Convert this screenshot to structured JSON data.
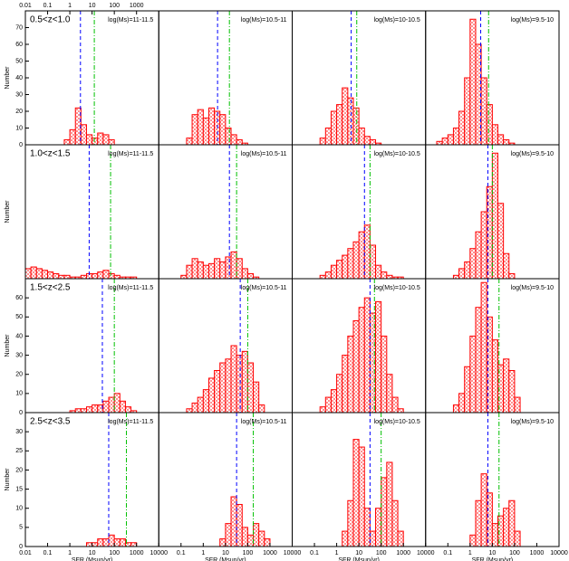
{
  "chart_data": [
    {
      "type": "histogram",
      "title": "0.5<z<1.0",
      "annotation": "log(Ms)=11-11.5",
      "ylabel": "Number",
      "log_x": true,
      "xlim": [
        0.01,
        10000
      ],
      "top_xticks": [
        0.01,
        0.1,
        1,
        10,
        100,
        1000
      ],
      "ylim": [
        0,
        80
      ],
      "yticks": [
        0,
        10,
        20,
        30,
        40,
        50,
        60,
        70
      ],
      "bins": [
        0.562,
        1,
        1.78,
        3.16,
        5.62,
        10,
        17.8,
        31.6,
        56.2,
        100
      ],
      "values": [
        3,
        9,
        22,
        12,
        6,
        4,
        7,
        6,
        3
      ],
      "color": "#ff0000",
      "lines": [
        {
          "x": 3,
          "color": "#0000ff",
          "style": "dashed"
        },
        {
          "x": 12.6,
          "color": "#00c000",
          "style": "dashdot"
        }
      ]
    },
    {
      "type": "histogram",
      "annotation": "log(Ms)=10.5-11",
      "log_x": true,
      "xlim": [
        0.01,
        10000
      ],
      "ylim": [
        0,
        80
      ],
      "bins": [
        0.178,
        0.316,
        0.562,
        1,
        1.78,
        3.16,
        5.62,
        10,
        17.8,
        31.6,
        56.2,
        100
      ],
      "values": [
        4,
        18,
        21,
        16,
        22,
        20,
        18,
        10,
        6,
        3,
        1
      ],
      "color": "#ff0000",
      "lines": [
        {
          "x": 4.4,
          "color": "#0000ff",
          "style": "dashed"
        },
        {
          "x": 15,
          "color": "#00c000",
          "style": "dashdot"
        }
      ]
    },
    {
      "type": "histogram",
      "annotation": "log(Ms)=10-10.5",
      "log_x": true,
      "xlim": [
        0.01,
        10000
      ],
      "ylim": [
        0,
        80
      ],
      "bins": [
        0.178,
        0.316,
        0.562,
        1,
        1.78,
        3.16,
        5.62,
        10,
        17.8,
        31.6,
        56.2,
        100
      ],
      "values": [
        4,
        10,
        20,
        24,
        34,
        28,
        22,
        10,
        5,
        3,
        1
      ],
      "color": "#ff0000",
      "lines": [
        {
          "x": 4.5,
          "color": "#0000ff",
          "style": "dashed"
        },
        {
          "x": 8,
          "color": "#00c000",
          "style": "dashdot"
        }
      ]
    },
    {
      "type": "histogram",
      "annotation": "log(Ms)=9.5-10",
      "log_x": true,
      "xlim": [
        0.01,
        10000
      ],
      "ylim": [
        0,
        80
      ],
      "bins": [
        0.0316,
        0.0562,
        0.1,
        0.178,
        0.316,
        0.562,
        1,
        1.78,
        3.16,
        5.62,
        10,
        17.8,
        31.6,
        56.2,
        100
      ],
      "values": [
        2,
        4,
        6,
        10,
        20,
        40,
        75,
        60,
        40,
        24,
        12,
        6,
        3,
        1
      ],
      "color": "#ff0000",
      "lines": [
        {
          "x": 3,
          "color": "#0000ff",
          "style": "dashed"
        },
        {
          "x": 6.8,
          "color": "#00c000",
          "style": "dashdot"
        }
      ]
    },
    {
      "type": "histogram",
      "title": "1.0<z<1.5",
      "annotation": "log(Ms)=11-11.5",
      "ylabel": "Number",
      "log_x": true,
      "xlim": [
        0.01,
        10000
      ],
      "ylim": [
        0,
        80
      ],
      "bins": [
        0.01,
        0.0178,
        0.0316,
        0.0562,
        0.1,
        0.178,
        0.316,
        0.562,
        1,
        1.78,
        3.16,
        5.62,
        10,
        17.8,
        31.6,
        56.2,
        100,
        178,
        316,
        562,
        1000
      ],
      "values": [
        6,
        7,
        6,
        5,
        4,
        3,
        2,
        2,
        1,
        1,
        2,
        3,
        3,
        4,
        5,
        3,
        2,
        1,
        1,
        1
      ],
      "color": "#ff0000",
      "lines": [
        {
          "x": 7.4,
          "color": "#0000ff",
          "style": "dashed"
        },
        {
          "x": 68,
          "color": "#00c000",
          "style": "dashdot"
        }
      ]
    },
    {
      "type": "histogram",
      "annotation": "log(Ms)=10.5-11",
      "log_x": true,
      "xlim": [
        0.01,
        10000
      ],
      "ylim": [
        0,
        80
      ],
      "bins": [
        0.1,
        0.178,
        0.316,
        0.562,
        1,
        1.78,
        3.16,
        5.62,
        10,
        17.8,
        31.6,
        56.2,
        100,
        178,
        316
      ],
      "values": [
        2,
        8,
        12,
        10,
        8,
        9,
        12,
        10,
        13,
        16,
        12,
        6,
        3,
        1
      ],
      "color": "#ff0000",
      "lines": [
        {
          "x": 15,
          "color": "#0000ff",
          "style": "dashed"
        },
        {
          "x": 31.6,
          "color": "#00c000",
          "style": "dashdot"
        }
      ]
    },
    {
      "type": "histogram",
      "annotation": "log(Ms)=10-10.5",
      "log_x": true,
      "xlim": [
        0.01,
        10000
      ],
      "ylim": [
        0,
        80
      ],
      "bins": [
        0.178,
        0.316,
        0.562,
        1,
        1.78,
        3.16,
        5.62,
        10,
        17.8,
        31.6,
        56.2,
        100,
        178,
        316,
        562,
        1000
      ],
      "values": [
        2,
        4,
        8,
        11,
        14,
        18,
        22,
        28,
        32,
        20,
        8,
        4,
        2,
        1,
        1
      ],
      "color": "#ff0000",
      "lines": [
        {
          "x": 17.8,
          "color": "#0000ff",
          "style": "dashed"
        },
        {
          "x": 31.6,
          "color": "#00c000",
          "style": "dashdot"
        }
      ]
    },
    {
      "type": "histogram",
      "annotation": "log(Ms)=9.5-10",
      "log_x": true,
      "xlim": [
        0.01,
        10000
      ],
      "ylim": [
        0,
        80
      ],
      "bins": [
        0.178,
        0.316,
        0.562,
        1,
        1.78,
        3.16,
        5.62,
        10,
        17.8,
        31.6,
        56.2,
        100
      ],
      "values": [
        2,
        6,
        10,
        18,
        28,
        40,
        55,
        75,
        45,
        15,
        3
      ],
      "color": "#ff0000",
      "lines": [
        {
          "x": 6.3,
          "color": "#0000ff",
          "style": "dashed"
        },
        {
          "x": 10,
          "color": "#00c000",
          "style": "dashdot"
        }
      ]
    },
    {
      "type": "histogram",
      "title": "1.5<z<2.5",
      "annotation": "log(Ms)=11-11.5",
      "ylabel": "Number",
      "log_x": true,
      "xlim": [
        0.01,
        10000
      ],
      "ylim": [
        0,
        70
      ],
      "yticks": [
        0,
        10,
        20,
        30,
        40,
        50,
        60
      ],
      "bins": [
        1,
        1.78,
        3.16,
        5.62,
        10,
        17.8,
        31.6,
        56.2,
        100,
        178,
        316,
        562,
        1000
      ],
      "values": [
        1,
        2,
        2,
        3,
        4,
        4,
        6,
        8,
        10,
        6,
        3,
        1
      ],
      "color": "#ff0000",
      "lines": [
        {
          "x": 29,
          "color": "#0000ff",
          "style": "dashed"
        },
        {
          "x": 100,
          "color": "#00c000",
          "style": "dashdot"
        }
      ]
    },
    {
      "type": "histogram",
      "annotation": "log(Ms)=10.5-11",
      "log_x": true,
      "xlim": [
        0.01,
        10000
      ],
      "ylim": [
        0,
        70
      ],
      "bins": [
        0.178,
        0.316,
        0.562,
        1,
        1.78,
        3.16,
        5.62,
        10,
        17.8,
        31.6,
        56.2,
        100,
        178,
        316,
        562
      ],
      "values": [
        2,
        5,
        8,
        12,
        18,
        22,
        26,
        28,
        35,
        30,
        32,
        26,
        16,
        4
      ],
      "color": "#ff0000",
      "lines": [
        {
          "x": 46,
          "color": "#0000ff",
          "style": "dashed"
        },
        {
          "x": 100,
          "color": "#00c000",
          "style": "dashdot"
        }
      ]
    },
    {
      "type": "histogram",
      "annotation": "log(Ms)=10-10.5",
      "log_x": true,
      "xlim": [
        0.01,
        10000
      ],
      "ylim": [
        0,
        70
      ],
      "bins": [
        0.178,
        0.316,
        0.562,
        1,
        1.78,
        3.16,
        5.62,
        10,
        17.8,
        31.6,
        56.2,
        100,
        178,
        316,
        562,
        1000
      ],
      "values": [
        3,
        8,
        12,
        20,
        30,
        40,
        48,
        55,
        60,
        52,
        58,
        40,
        20,
        8,
        2
      ],
      "color": "#ff0000",
      "lines": [
        {
          "x": 31.6,
          "color": "#0000ff",
          "style": "dashed"
        },
        {
          "x": 50,
          "color": "#00c000",
          "style": "dashdot"
        }
      ]
    },
    {
      "type": "histogram",
      "annotation": "log(Ms)=9.5-10",
      "log_x": true,
      "xlim": [
        0.01,
        10000
      ],
      "ylim": [
        0,
        70
      ],
      "bins": [
        0.178,
        0.316,
        0.562,
        1,
        1.78,
        3.16,
        5.62,
        10,
        17.8,
        31.6,
        56.2,
        100,
        178
      ],
      "values": [
        4,
        10,
        24,
        40,
        55,
        68,
        50,
        38,
        25,
        28,
        22,
        8
      ],
      "color": "#ff0000",
      "lines": [
        {
          "x": 6.3,
          "color": "#0000ff",
          "style": "dashed"
        },
        {
          "x": 20,
          "color": "#00c000",
          "style": "dashdot"
        }
      ]
    },
    {
      "type": "histogram",
      "title": "2.5<z<3.5",
      "annotation": "log(Ms)=11-11.5",
      "ylabel": "Number",
      "xlabel": "SFR  (Msun/yr)",
      "log_x": true,
      "xlim": [
        0.01,
        10000
      ],
      "xticks": [
        0.01,
        0.1,
        1,
        10,
        100,
        1000,
        10000
      ],
      "ylim": [
        0,
        35
      ],
      "yticks": [
        0,
        5,
        10,
        15,
        20,
        25,
        30
      ],
      "bins": [
        5.62,
        10,
        17.8,
        31.6,
        56.2,
        100,
        178,
        316,
        562,
        1000
      ],
      "values": [
        1,
        1,
        2,
        2,
        3,
        2,
        2,
        1,
        1
      ],
      "color": "#ff0000",
      "lines": [
        {
          "x": 56,
          "color": "#0000ff",
          "style": "dashed"
        },
        {
          "x": 350,
          "color": "#00c000",
          "style": "dashdot"
        }
      ]
    },
    {
      "type": "histogram",
      "annotation": "log(Ms)=10.5-11",
      "xlabel": "SFR  (Msun/yr)",
      "log_x": true,
      "xlim": [
        0.01,
        10000
      ],
      "xticks": [
        0.1,
        1,
        10,
        100,
        1000,
        10000
      ],
      "ylim": [
        0,
        35
      ],
      "bins": [
        5.62,
        10,
        17.8,
        31.6,
        56.2,
        100,
        178,
        316,
        562,
        1000
      ],
      "values": [
        2,
        6,
        13,
        11,
        5,
        3,
        6,
        4,
        2
      ],
      "color": "#ff0000",
      "lines": [
        {
          "x": 31.6,
          "color": "#0000ff",
          "style": "dashed"
        },
        {
          "x": 178,
          "color": "#00c000",
          "style": "dashdot"
        }
      ]
    },
    {
      "type": "histogram",
      "annotation": "log(Ms)=10-10.5",
      "xlabel": "SFR  (Msun/yr)",
      "log_x": true,
      "xlim": [
        0.01,
        10000
      ],
      "xticks": [
        0.1,
        1,
        10,
        100,
        1000,
        10000
      ],
      "ylim": [
        0,
        35
      ],
      "bins": [
        1.78,
        3.16,
        5.62,
        10,
        17.8,
        31.6,
        56.2,
        100,
        178,
        316,
        562,
        1000
      ],
      "values": [
        4,
        12,
        28,
        26,
        10,
        4,
        10,
        18,
        22,
        12,
        4
      ],
      "color": "#ff0000",
      "lines": [
        {
          "x": 31.6,
          "color": "#0000ff",
          "style": "dashed"
        },
        {
          "x": 100,
          "color": "#00c000",
          "style": "dashdot"
        }
      ]
    },
    {
      "type": "histogram",
      "annotation": "log(Ms)=9.5-10",
      "xlabel": "SFR  (Msun/yr)",
      "log_x": true,
      "xlim": [
        0.01,
        10000
      ],
      "xticks": [
        0.1,
        1,
        10,
        100,
        1000,
        10000
      ],
      "ylim": [
        0,
        35
      ],
      "bins": [
        1,
        1.78,
        3.16,
        5.62,
        10,
        17.8,
        31.6,
        56.2,
        100,
        178
      ],
      "values": [
        3,
        12,
        19,
        14,
        6,
        8,
        10,
        12,
        4
      ],
      "color": "#ff0000",
      "lines": [
        {
          "x": 6.3,
          "color": "#0000ff",
          "style": "dashed"
        },
        {
          "x": 20,
          "color": "#00c000",
          "style": "dashdot"
        }
      ]
    }
  ]
}
